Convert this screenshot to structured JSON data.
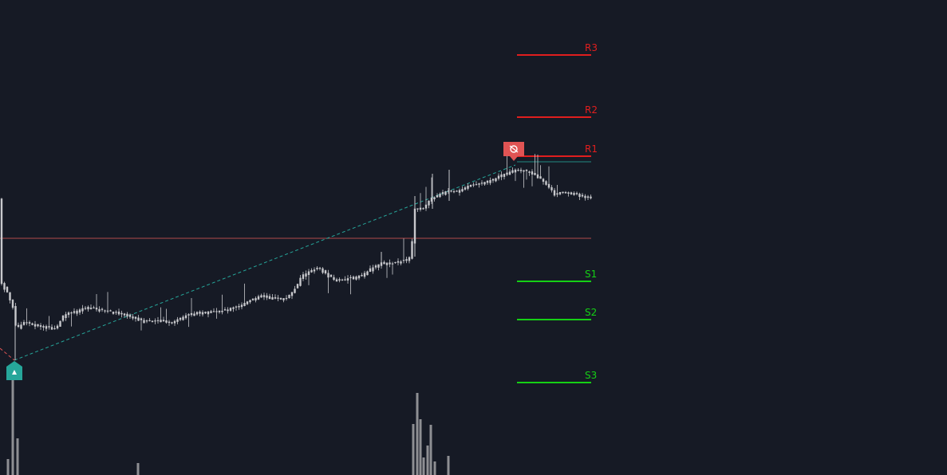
{
  "chart_data": {
    "type": "candlestick",
    "title": "",
    "xlabel": "",
    "ylabel": "",
    "ylim": [
      0,
      596
    ],
    "grid": false,
    "colors": {
      "background": "#161a25",
      "candle": "#c8c9cd",
      "volume": "#8e8f93",
      "resistance": "#e01e1e",
      "support": "#15d015",
      "pivot": "#b34a4a",
      "trend": "#26a69a",
      "buy_marker": "#26a69a",
      "sell_marker": "#e05454",
      "prev_trend": "#e05454"
    },
    "pivot_levels": [
      {
        "label": "R3",
        "value": 69,
        "kind": "resistance"
      },
      {
        "label": "R2",
        "value": 147,
        "kind": "resistance"
      },
      {
        "label": "R1",
        "value": 196,
        "kind": "resistance"
      },
      {
        "label": "",
        "value": 203,
        "kind": "trend-level"
      },
      {
        "label": "",
        "value": 299,
        "kind": "pivot"
      },
      {
        "label": "S1",
        "value": 353,
        "kind": "support"
      },
      {
        "label": "S2",
        "value": 401,
        "kind": "support"
      },
      {
        "label": "S3",
        "value": 480,
        "kind": "support"
      }
    ],
    "price_path": [
      [
        0,
        352
      ],
      [
        8,
        365
      ],
      [
        16,
        385
      ],
      [
        20,
        412
      ],
      [
        30,
        405
      ],
      [
        40,
        407
      ],
      [
        55,
        410
      ],
      [
        70,
        413
      ],
      [
        80,
        395
      ],
      [
        90,
        392
      ],
      [
        110,
        386
      ],
      [
        130,
        390
      ],
      [
        150,
        393
      ],
      [
        165,
        398
      ],
      [
        180,
        403
      ],
      [
        200,
        402
      ],
      [
        215,
        405
      ],
      [
        225,
        400
      ],
      [
        240,
        394
      ],
      [
        260,
        391
      ],
      [
        280,
        390
      ],
      [
        300,
        385
      ],
      [
        315,
        376
      ],
      [
        330,
        371
      ],
      [
        345,
        375
      ],
      [
        360,
        374
      ],
      [
        372,
        360
      ],
      [
        378,
        346
      ],
      [
        390,
        340
      ],
      [
        400,
        336
      ],
      [
        410,
        345
      ],
      [
        420,
        352
      ],
      [
        430,
        351
      ],
      [
        440,
        349
      ],
      [
        455,
        345
      ],
      [
        465,
        337
      ],
      [
        478,
        330
      ],
      [
        490,
        331
      ],
      [
        505,
        328
      ],
      [
        515,
        322
      ],
      [
        520,
        262
      ],
      [
        530,
        262
      ],
      [
        540,
        250
      ],
      [
        550,
        245
      ],
      [
        560,
        240
      ],
      [
        570,
        240
      ],
      [
        580,
        238
      ],
      [
        590,
        232
      ],
      [
        600,
        231
      ],
      [
        615,
        227
      ],
      [
        625,
        222
      ],
      [
        635,
        217
      ],
      [
        645,
        213
      ],
      [
        655,
        214
      ],
      [
        665,
        217
      ],
      [
        675,
        223
      ],
      [
        685,
        232
      ],
      [
        695,
        243
      ],
      [
        705,
        242
      ],
      [
        715,
        242
      ],
      [
        725,
        245
      ],
      [
        735,
        247
      ],
      [
        742,
        250
      ]
    ],
    "volume_bars": [
      {
        "x": 10,
        "value": 20
      },
      {
        "x": 16,
        "value": 140
      },
      {
        "x": 22,
        "value": 46
      },
      {
        "x": 173,
        "value": 15
      },
      {
        "x": 518,
        "value": 64
      },
      {
        "x": 523,
        "value": 103
      },
      {
        "x": 527,
        "value": 70
      },
      {
        "x": 531,
        "value": 22
      },
      {
        "x": 536,
        "value": 37
      },
      {
        "x": 540,
        "value": 63
      },
      {
        "x": 545,
        "value": 17
      },
      {
        "x": 562,
        "value": 24
      }
    ],
    "trendlines": [
      {
        "kind": "uptrend",
        "from": [
          18,
          452
        ],
        "to": [
          646,
          207
        ]
      },
      {
        "kind": "prior-downtrend",
        "from": [
          0,
          437
        ],
        "to": [
          18,
          452
        ]
      }
    ],
    "markers": [
      {
        "kind": "buy",
        "x": 18,
        "y": 466,
        "icon": "bull-icon"
      },
      {
        "kind": "sell",
        "x": 644,
        "y": 187,
        "icon": "bear-icon"
      }
    ]
  }
}
